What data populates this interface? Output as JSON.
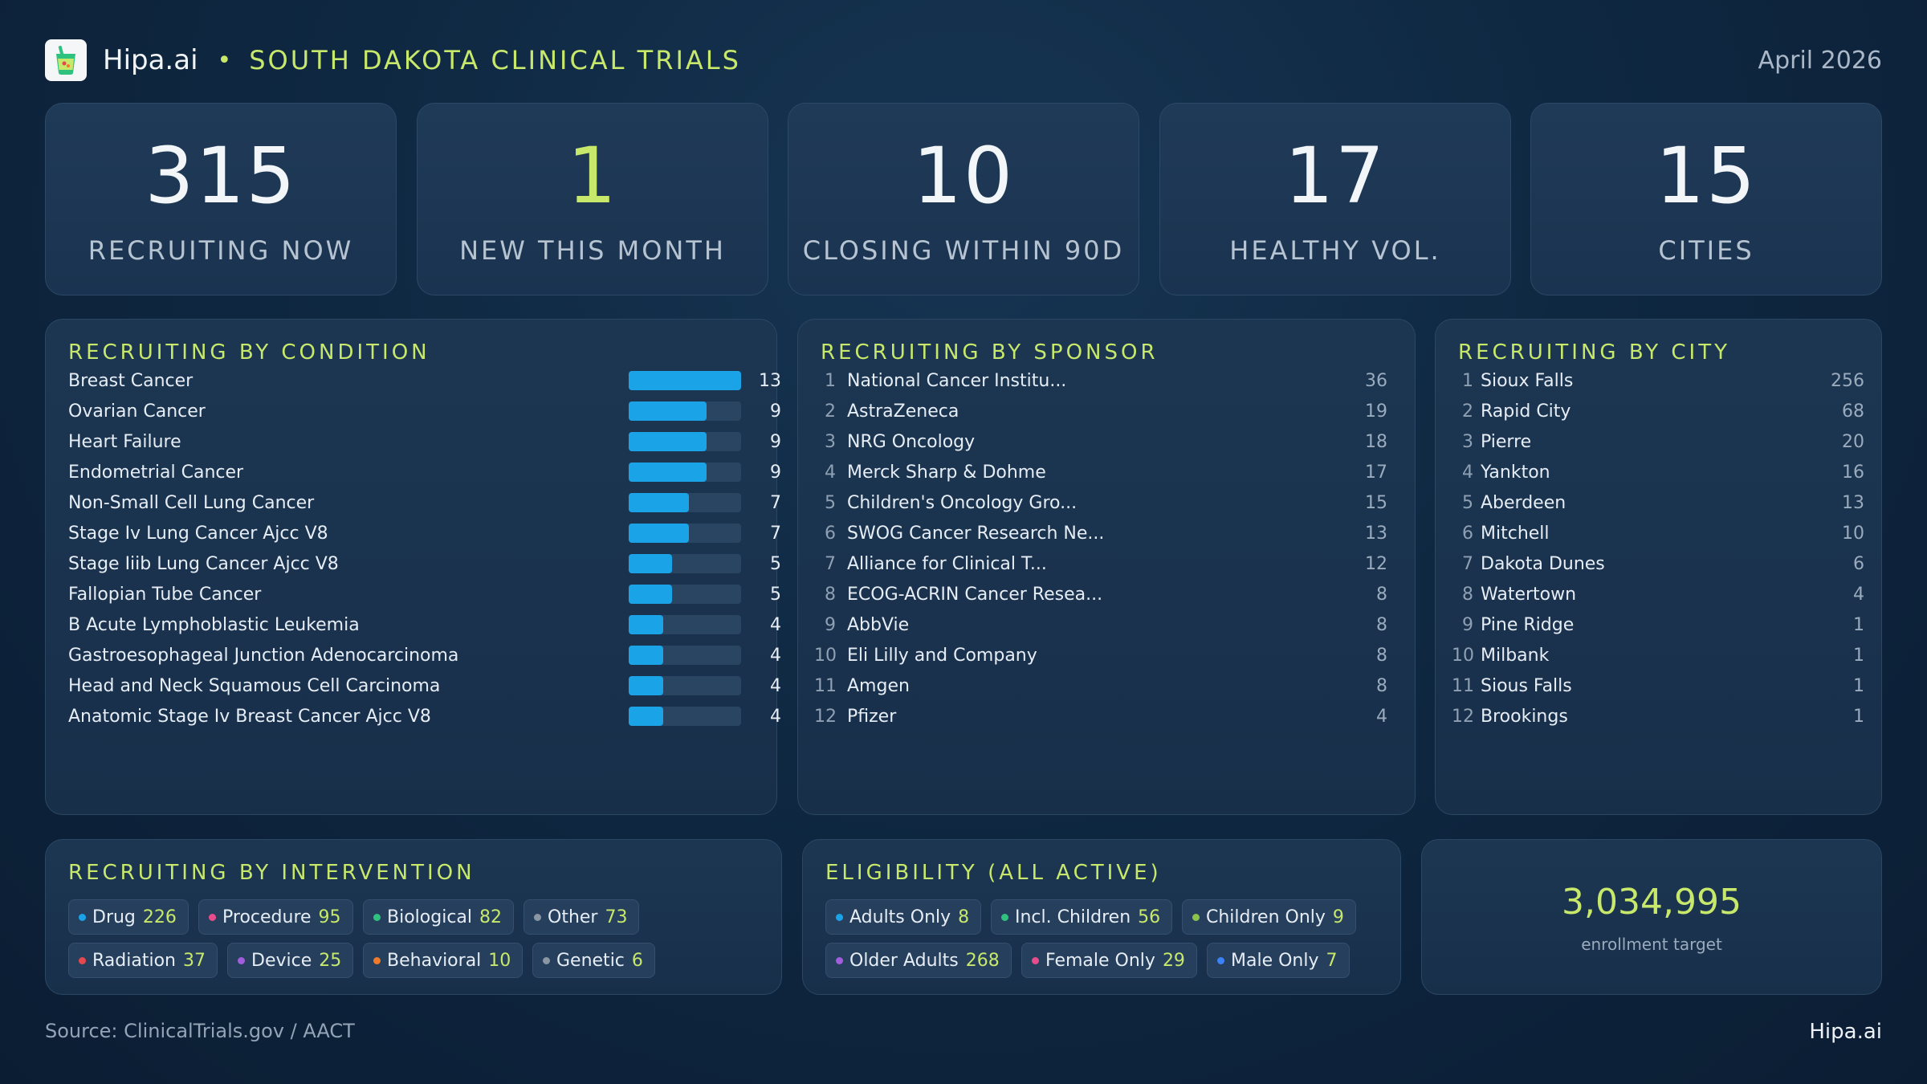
{
  "header": {
    "brand": "Hipa.ai",
    "title": "SOUTH DAKOTA CLINICAL TRIALS",
    "date": "April 2026",
    "logo_icon": "cup-with-straw-icon",
    "accent_color": "#c8e86b"
  },
  "kpis": [
    {
      "value": "315",
      "label": "RECRUITING NOW"
    },
    {
      "value": "1",
      "label": "NEW THIS MONTH"
    },
    {
      "value": "10",
      "label": "CLOSING WITHIN 90D"
    },
    {
      "value": "17",
      "label": "HEALTHY VOL."
    },
    {
      "value": "15",
      "label": "CITIES"
    }
  ],
  "conditions": {
    "title": "RECRUITING BY CONDITION",
    "bar_color": "#1aa3e6",
    "max": 13,
    "items": [
      {
        "name": "Breast Cancer",
        "count": 13
      },
      {
        "name": "Ovarian Cancer",
        "count": 9
      },
      {
        "name": "Heart Failure",
        "count": 9
      },
      {
        "name": "Endometrial Cancer",
        "count": 9
      },
      {
        "name": "Non-Small Cell Lung Cancer",
        "count": 7
      },
      {
        "name": "Stage Iv Lung Cancer Ajcc V8",
        "count": 7
      },
      {
        "name": "Stage Iiib Lung Cancer Ajcc V8",
        "count": 5
      },
      {
        "name": "Fallopian Tube Cancer",
        "count": 5
      },
      {
        "name": "B Acute Lymphoblastic Leukemia",
        "count": 4
      },
      {
        "name": "Gastroesophageal Junction Adenocarcinoma",
        "count": 4
      },
      {
        "name": "Head and Neck Squamous Cell Carcinoma",
        "count": 4
      },
      {
        "name": "Anatomic Stage Iv Breast Cancer Ajcc V8",
        "count": 4
      }
    ]
  },
  "sponsors": {
    "title": "RECRUITING BY SPONSOR",
    "items": [
      {
        "rank": "1",
        "name": "National Cancer Institu...",
        "count": "36"
      },
      {
        "rank": "2",
        "name": "AstraZeneca",
        "count": "19"
      },
      {
        "rank": "3",
        "name": "NRG Oncology",
        "count": "18"
      },
      {
        "rank": "4",
        "name": "Merck Sharp & Dohme",
        "count": "17"
      },
      {
        "rank": "5",
        "name": "Children's Oncology Gro...",
        "count": "15"
      },
      {
        "rank": "6",
        "name": "SWOG Cancer Research Ne...",
        "count": "13"
      },
      {
        "rank": "7",
        "name": "Alliance for Clinical T...",
        "count": "12"
      },
      {
        "rank": "8",
        "name": "ECOG-ACRIN Cancer Resea...",
        "count": "8"
      },
      {
        "rank": "9",
        "name": "AbbVie",
        "count": "8"
      },
      {
        "rank": "10",
        "name": "Eli Lilly and Company",
        "count": "8"
      },
      {
        "rank": "11",
        "name": "Amgen",
        "count": "8"
      },
      {
        "rank": "12",
        "name": "Pfizer",
        "count": "4"
      }
    ]
  },
  "cities": {
    "title": "RECRUITING BY CITY",
    "items": [
      {
        "rank": "1",
        "name": "Sioux Falls",
        "count": "256"
      },
      {
        "rank": "2",
        "name": "Rapid City",
        "count": "68"
      },
      {
        "rank": "3",
        "name": "Pierre",
        "count": "20"
      },
      {
        "rank": "4",
        "name": "Yankton",
        "count": "16"
      },
      {
        "rank": "5",
        "name": "Aberdeen",
        "count": "13"
      },
      {
        "rank": "6",
        "name": "Mitchell",
        "count": "10"
      },
      {
        "rank": "7",
        "name": "Dakota Dunes",
        "count": "6"
      },
      {
        "rank": "8",
        "name": "Watertown",
        "count": "4"
      },
      {
        "rank": "9",
        "name": "Pine Ridge",
        "count": "1"
      },
      {
        "rank": "10",
        "name": "Milbank",
        "count": "1"
      },
      {
        "rank": "11",
        "name": "Sious Falls",
        "count": "1"
      },
      {
        "rank": "12",
        "name": "Brookings",
        "count": "1"
      }
    ]
  },
  "interventions": {
    "title": "RECRUITING BY INTERVENTION",
    "chips": [
      {
        "label": "Drug",
        "count": "226",
        "color": "#1aa3e6"
      },
      {
        "label": "Procedure",
        "count": "95",
        "color": "#e84c8b"
      },
      {
        "label": "Biological",
        "count": "82",
        "color": "#2ec27e"
      },
      {
        "label": "Other",
        "count": "73",
        "color": "#8a96a3"
      },
      {
        "label": "Radiation",
        "count": "37",
        "color": "#e5484d"
      },
      {
        "label": "Device",
        "count": "25",
        "color": "#a25ddc"
      },
      {
        "label": "Behavioral",
        "count": "10",
        "color": "#f07a2a"
      },
      {
        "label": "Genetic",
        "count": "6",
        "color": "#8a96a3"
      }
    ]
  },
  "eligibility": {
    "title": "ELIGIBILITY (ALL ACTIVE)",
    "chips": [
      {
        "label": "Adults Only",
        "count": "8",
        "color": "#1aa3e6"
      },
      {
        "label": "Incl. Children",
        "count": "56",
        "color": "#2ec27e"
      },
      {
        "label": "Children Only",
        "count": "9",
        "color": "#8bc34a"
      },
      {
        "label": "Older Adults",
        "count": "268",
        "color": "#a25ddc"
      },
      {
        "label": "Female Only",
        "count": "29",
        "color": "#e84c8b"
      },
      {
        "label": "Male Only",
        "count": "7",
        "color": "#3b82f6"
      }
    ]
  },
  "enrollment": {
    "value": "3,034,995",
    "label": "enrollment target"
  },
  "footer": {
    "source": "Source: ClinicalTrials.gov / AACT",
    "brand": "Hipa.ai"
  }
}
